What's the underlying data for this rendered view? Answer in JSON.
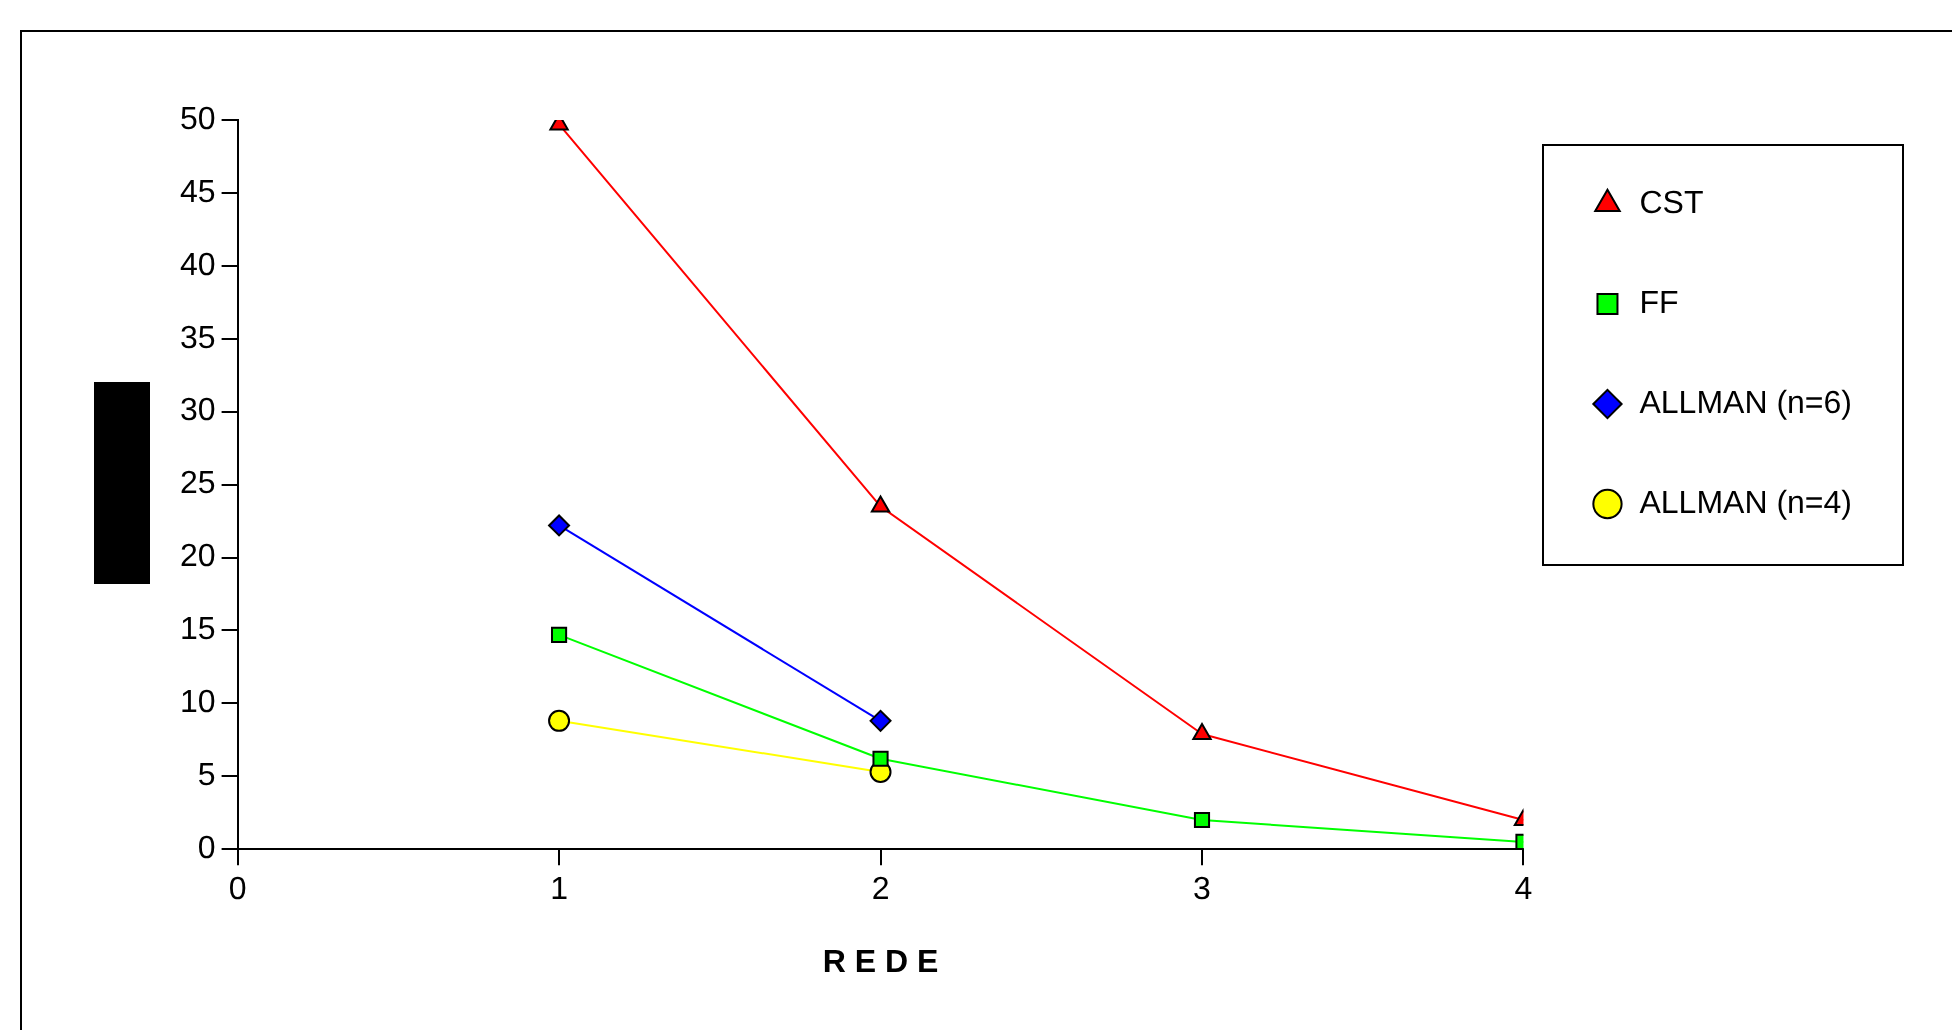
{
  "chart_data": {
    "type": "line",
    "xlabel": "R E D E",
    "x": [
      1,
      2,
      3,
      4
    ],
    "xlim": [
      0,
      4
    ],
    "xticks": [
      0,
      1,
      2,
      3,
      4
    ],
    "ylim": [
      0,
      50
    ],
    "yticks": [
      0,
      5,
      10,
      15,
      20,
      25,
      30,
      35,
      40,
      45,
      50
    ],
    "grid": false,
    "legend": "top right",
    "line_style": "solid",
    "series": [
      {
        "name": "CST",
        "color": "#ff0000",
        "marker": "triangle",
        "values": [
          49.7,
          23.5,
          7.9,
          2.0
        ]
      },
      {
        "name": "FF",
        "color": "#00ff00",
        "marker": "square",
        "values": [
          14.7,
          6.2,
          2.0,
          0.5
        ]
      },
      {
        "name": "ALLMAN (n=6)",
        "color": "#0000ff",
        "marker": "diamond",
        "values": [
          22.2,
          8.8,
          null,
          null
        ]
      },
      {
        "name": "ALLMAN (n=4)",
        "color": "#ffff00",
        "marker": "circle",
        "values": [
          8.8,
          5.3,
          null,
          null
        ]
      }
    ]
  }
}
